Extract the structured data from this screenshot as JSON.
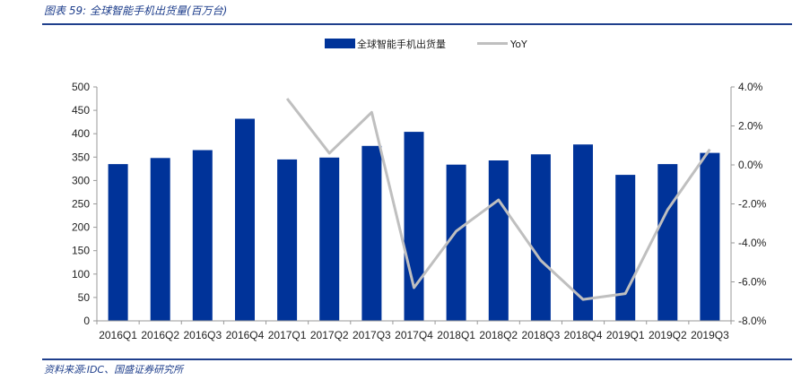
{
  "caption": "图表 59:  全球智能手机出货量(百万台)",
  "source": "资料来源:IDC、国盛证券研究所",
  "colors": {
    "bar": "#003399",
    "line": "#bfbfbf",
    "accent": "#1f3f8c"
  },
  "chart_data": {
    "type": "bar",
    "categories": [
      "2016Q1",
      "2016Q2",
      "2016Q3",
      "2016Q4",
      "2017Q1",
      "2017Q2",
      "2017Q3",
      "2017Q4",
      "2018Q1",
      "2018Q2",
      "2018Q3",
      "2018Q4",
      "2019Q1",
      "2019Q2",
      "2019Q3"
    ],
    "series": [
      {
        "name": "全球智能手机出货量",
        "type": "bar",
        "axis": "left",
        "values": [
          335,
          348,
          365,
          432,
          345,
          349,
          374,
          404,
          334,
          343,
          356,
          377,
          312,
          335,
          359
        ]
      },
      {
        "name": "YoY",
        "type": "line",
        "axis": "right",
        "values": [
          null,
          null,
          null,
          null,
          3.4,
          0.6,
          2.7,
          -6.3,
          -3.4,
          -1.8,
          -4.9,
          -6.9,
          -6.6,
          -2.3,
          0.8
        ]
      }
    ],
    "y_left": {
      "ylim": [
        0,
        500
      ],
      "ticks": [
        "0",
        "50",
        "100",
        "150",
        "200",
        "250",
        "300",
        "350",
        "400",
        "450",
        "500"
      ]
    },
    "y_right": {
      "ylim": [
        -8,
        4
      ],
      "ticks": [
        "-8.0%",
        "-6.0%",
        "-4.0%",
        "-2.0%",
        "0.0%",
        "2.0%",
        "4.0%"
      ]
    },
    "legend": {
      "position": "top-center",
      "items": [
        "全球智能手机出货量",
        "YoY"
      ]
    },
    "grid": false
  }
}
